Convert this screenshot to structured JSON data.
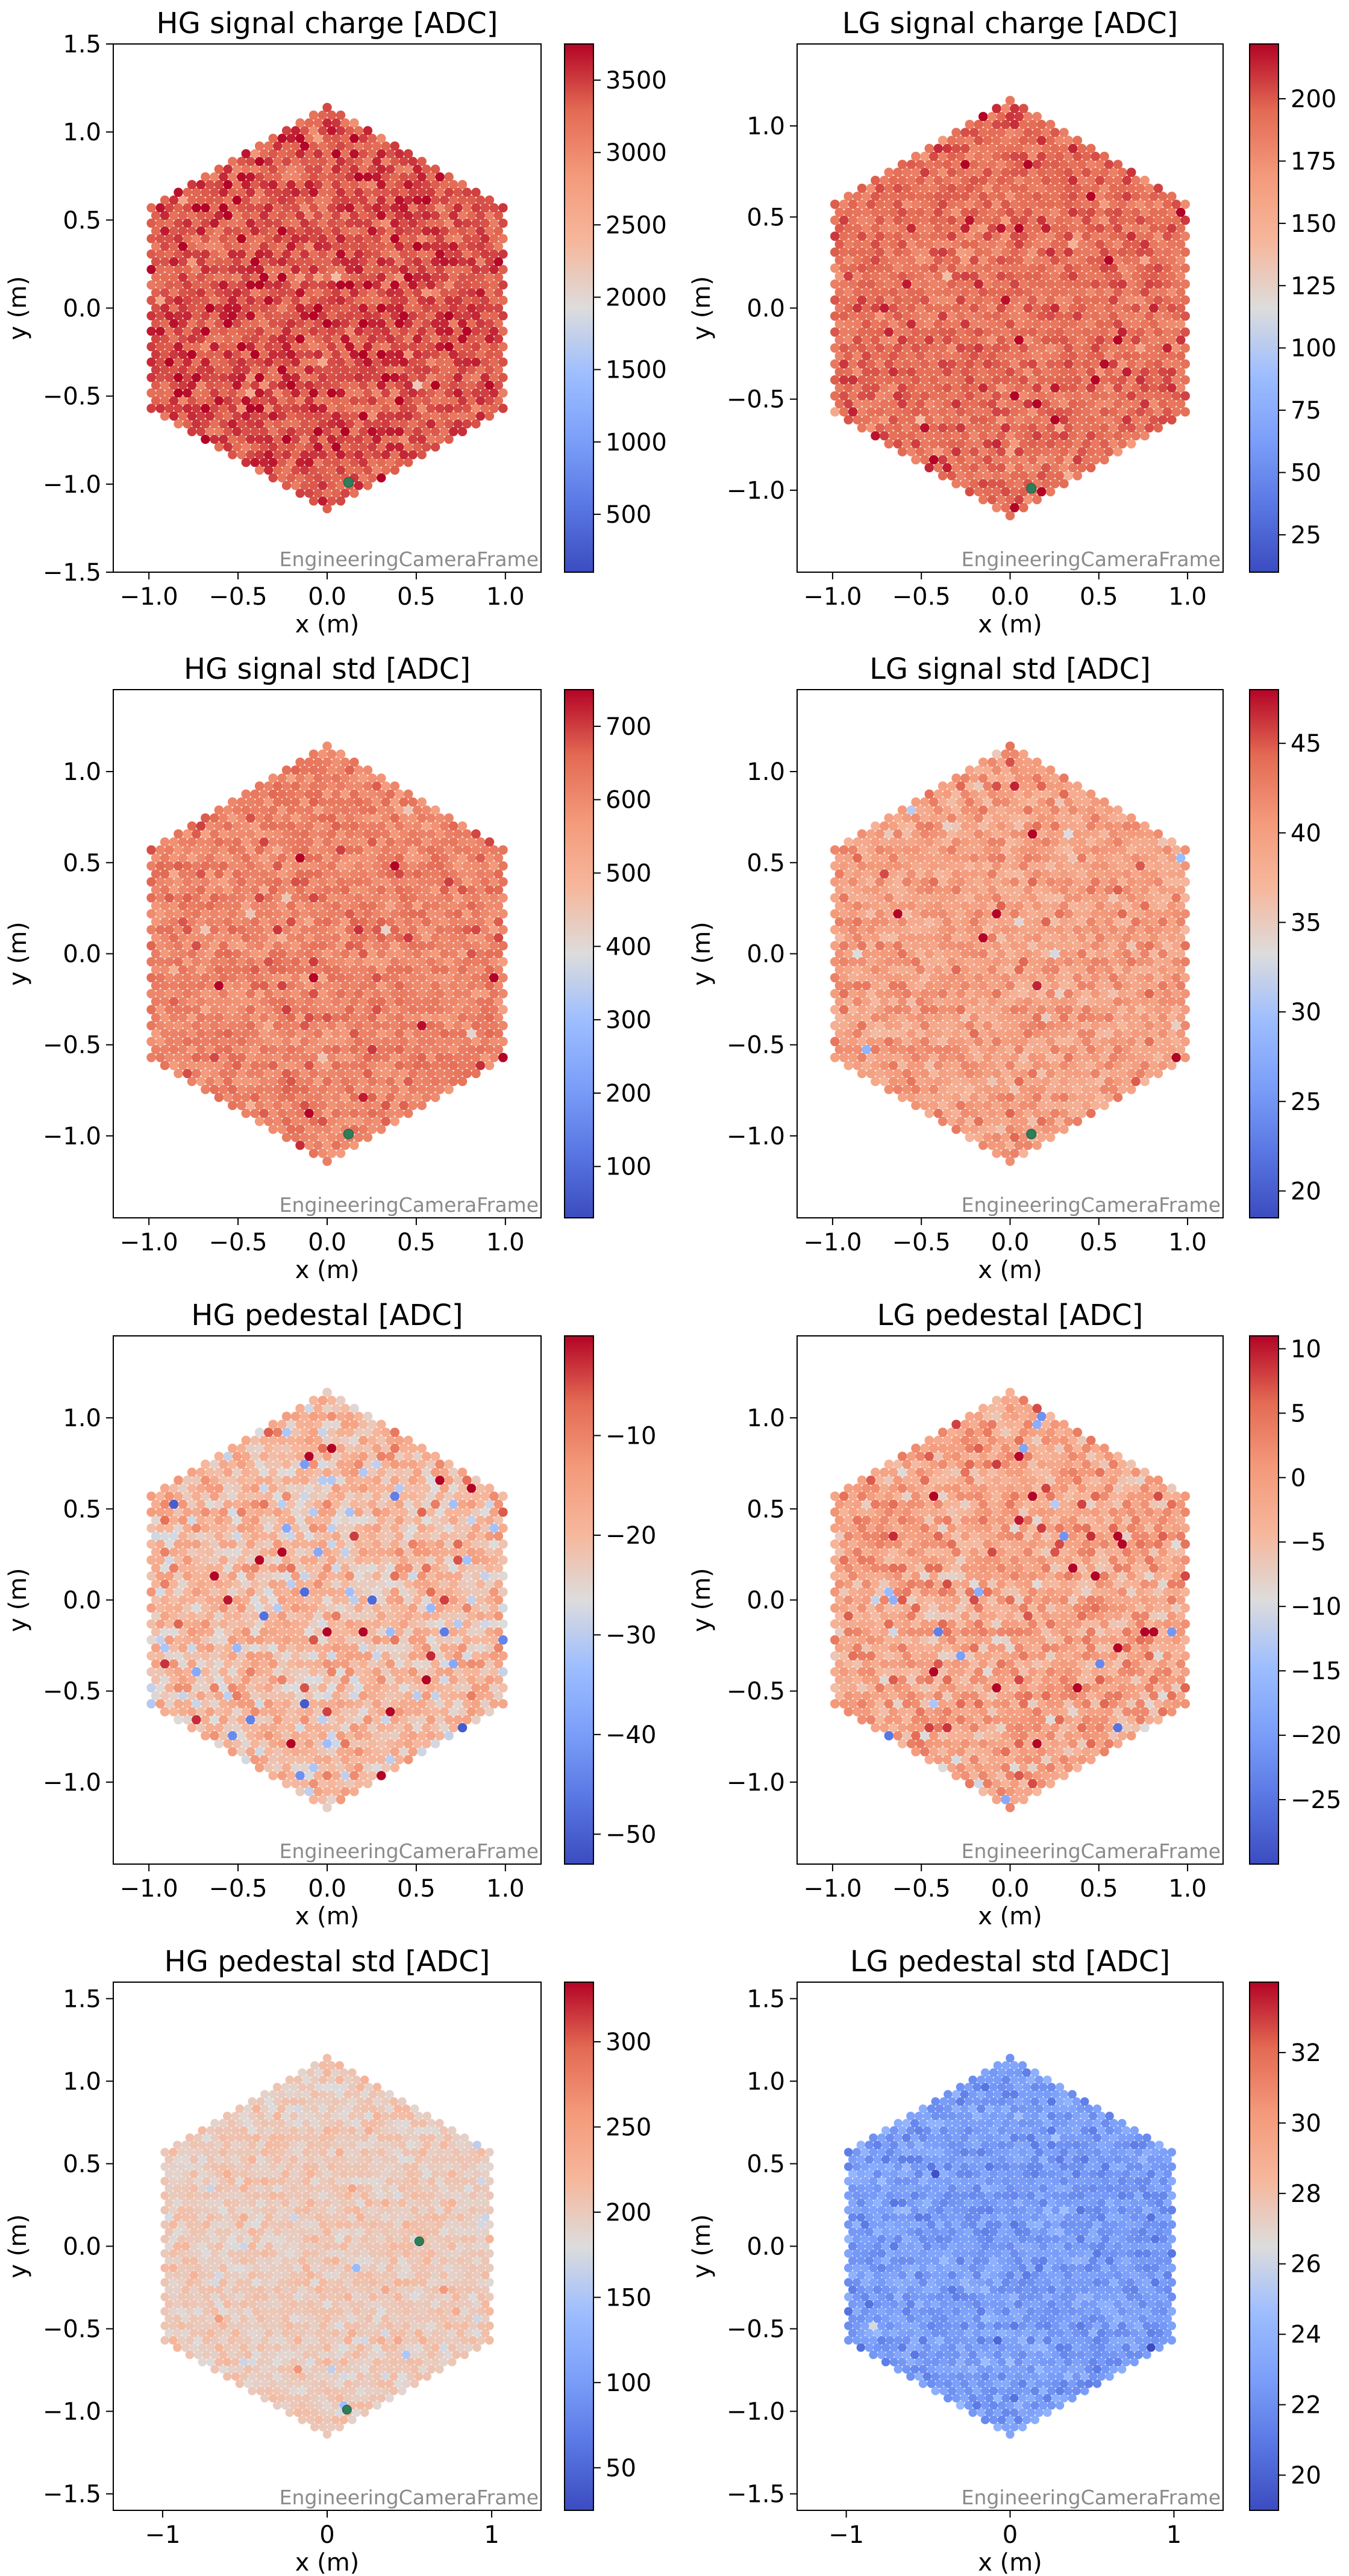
{
  "figure": {
    "frame_label": "EngineeringCameraFrame",
    "xlabel": "x  (m)",
    "ylabel": "y  (m)",
    "colormap": "coolwarm"
  },
  "chart_data": [
    {
      "type": "heatmap",
      "title": "HG signal charge [ADC]",
      "xlabel": "x  (m)",
      "ylabel": "y  (m)",
      "xlim": [
        -1.2,
        1.2
      ],
      "ylim": [
        -1.5,
        1.5
      ],
      "xticks": [
        "−1.0",
        "−0.5",
        "0.0",
        "0.5",
        "1.0"
      ],
      "xtick_values": [
        -1.0,
        -0.5,
        0.0,
        0.5,
        1.0
      ],
      "yticks": [
        "−1.5",
        "−1.0",
        "−0.5",
        "0.0",
        "0.5",
        "1.0",
        "1.5"
      ],
      "ytick_values": [
        -1.5,
        -1.0,
        -0.5,
        0.0,
        0.5,
        1.0,
        1.5
      ],
      "color_range": [
        100,
        3750
      ],
      "colorbar_ticks": [
        "500",
        "1000",
        "1500",
        "2000",
        "2500",
        "3000",
        "3500"
      ],
      "colorbar_tick_values": [
        500,
        1000,
        1500,
        2000,
        2500,
        3000,
        3500
      ],
      "typical_value": 3400,
      "spread": 180,
      "outlier_fraction": 0.01,
      "highlighted_pixels": [
        [
          0.12,
          -0.99
        ]
      ]
    },
    {
      "type": "heatmap",
      "title": "LG signal charge [ADC]",
      "xlabel": "x  (m)",
      "ylabel": "y  (m)",
      "xlim": [
        -1.2,
        1.2
      ],
      "ylim": [
        -1.45,
        1.45
      ],
      "xticks": [
        "−1.0",
        "−0.5",
        "0.0",
        "0.5",
        "1.0"
      ],
      "xtick_values": [
        -1.0,
        -0.5,
        0.0,
        0.5,
        1.0
      ],
      "yticks": [
        "−1.0",
        "−0.5",
        "0.0",
        "0.5",
        "1.0"
      ],
      "ytick_values": [
        -1.0,
        -0.5,
        0.0,
        0.5,
        1.0
      ],
      "color_range": [
        10,
        222
      ],
      "colorbar_ticks": [
        "25",
        "50",
        "75",
        "100",
        "125",
        "150",
        "175",
        "200"
      ],
      "colorbar_tick_values": [
        25,
        50,
        75,
        100,
        125,
        150,
        175,
        200
      ],
      "typical_value": 192,
      "spread": 9,
      "outlier_fraction": 0.01,
      "highlighted_pixels": [
        [
          0.12,
          -0.99
        ]
      ]
    },
    {
      "type": "heatmap",
      "title": "HG signal std [ADC]",
      "xlabel": "x  (m)",
      "ylabel": "y  (m)",
      "xlim": [
        -1.2,
        1.2
      ],
      "ylim": [
        -1.45,
        1.45
      ],
      "xticks": [
        "−1.0",
        "−0.5",
        "0.0",
        "0.5",
        "1.0"
      ],
      "xtick_values": [
        -1.0,
        -0.5,
        0.0,
        0.5,
        1.0
      ],
      "yticks": [
        "−1.0",
        "−0.5",
        "0.0",
        "0.5",
        "1.0"
      ],
      "ytick_values": [
        -1.0,
        -0.5,
        0.0,
        0.5,
        1.0
      ],
      "color_range": [
        30,
        750
      ],
      "colorbar_ticks": [
        "100",
        "200",
        "300",
        "400",
        "500",
        "600",
        "700"
      ],
      "colorbar_tick_values": [
        100,
        200,
        300,
        400,
        500,
        600,
        700
      ],
      "typical_value": 615,
      "spread": 30,
      "outlier_fraction": 0.01,
      "highlighted_pixels": [
        [
          0.12,
          -0.99
        ]
      ]
    },
    {
      "type": "heatmap",
      "title": "LG signal std [ADC]",
      "xlabel": "x  (m)",
      "ylabel": "y  (m)",
      "xlim": [
        -1.2,
        1.2
      ],
      "ylim": [
        -1.45,
        1.45
      ],
      "xticks": [
        "−1.0",
        "−0.5",
        "0.0",
        "0.5",
        "1.0"
      ],
      "xtick_values": [
        -1.0,
        -0.5,
        0.0,
        0.5,
        1.0
      ],
      "yticks": [
        "−1.0",
        "−0.5",
        "0.0",
        "0.5",
        "1.0"
      ],
      "ytick_values": [
        -1.0,
        -0.5,
        0.0,
        0.5,
        1.0
      ],
      "color_range": [
        18.5,
        48
      ],
      "colorbar_ticks": [
        "20",
        "25",
        "30",
        "35",
        "40",
        "45"
      ],
      "colorbar_tick_values": [
        20,
        25,
        30,
        35,
        40,
        45
      ],
      "typical_value": 40,
      "spread": 1.8,
      "outlier_fraction": 0.01,
      "highlighted_pixels": [
        [
          0.12,
          -0.99
        ]
      ]
    },
    {
      "type": "heatmap",
      "title": "HG pedestal [ADC]",
      "xlabel": "x  (m)",
      "ylabel": "y  (m)",
      "xlim": [
        -1.2,
        1.2
      ],
      "ylim": [
        -1.45,
        1.45
      ],
      "xticks": [
        "−1.0",
        "−0.5",
        "0.0",
        "0.5",
        "1.0"
      ],
      "xtick_values": [
        -1.0,
        -0.5,
        0.0,
        0.5,
        1.0
      ],
      "yticks": [
        "−1.0",
        "−0.5",
        "0.0",
        "0.5",
        "1.0"
      ],
      "ytick_values": [
        -1.0,
        -0.5,
        0.0,
        0.5,
        1.0
      ],
      "color_range": [
        -53,
        0
      ],
      "colorbar_ticks": [
        "−50",
        "−40",
        "−30",
        "−20",
        "−10"
      ],
      "colorbar_tick_values": [
        -50,
        -40,
        -30,
        -20,
        -10
      ],
      "typical_value": -20,
      "spread": 4.5,
      "outlier_fraction": 0.02,
      "highlighted_pixels": []
    },
    {
      "type": "heatmap",
      "title": "LG pedestal [ADC]",
      "xlabel": "x  (m)",
      "ylabel": "y  (m)",
      "xlim": [
        -1.2,
        1.2
      ],
      "ylim": [
        -1.45,
        1.45
      ],
      "xticks": [
        "−1.0",
        "−0.5",
        "0.0",
        "0.5",
        "1.0"
      ],
      "xtick_values": [
        -1.0,
        -0.5,
        0.0,
        0.5,
        1.0
      ],
      "yticks": [
        "−1.0",
        "−0.5",
        "0.0",
        "0.5",
        "1.0"
      ],
      "ytick_values": [
        -1.0,
        -0.5,
        0.0,
        0.5,
        1.0
      ],
      "color_range": [
        -30,
        11
      ],
      "colorbar_ticks": [
        "−25",
        "−20",
        "−15",
        "−10",
        "−5",
        "0",
        "5",
        "10"
      ],
      "colorbar_tick_values": [
        -25,
        -20,
        -15,
        -10,
        -5,
        0,
        5,
        10
      ],
      "typical_value": -1,
      "spread": 3.5,
      "outlier_fraction": 0.02,
      "highlighted_pixels": []
    },
    {
      "type": "heatmap",
      "title": "HG pedestal std [ADC]",
      "xlabel": "x  (m)",
      "ylabel": "y  (m)",
      "xlim": [
        -1.3,
        1.3
      ],
      "ylim": [
        -1.6,
        1.6
      ],
      "xticks": [
        "−1",
        "0",
        "1"
      ],
      "xtick_values": [
        -1,
        0,
        1
      ],
      "yticks": [
        "−1.5",
        "−1.0",
        "−0.5",
        "0.0",
        "0.5",
        "1.0",
        "1.5"
      ],
      "ytick_values": [
        -1.5,
        -1.0,
        -0.5,
        0.0,
        0.5,
        1.0,
        1.5
      ],
      "color_range": [
        25,
        335
      ],
      "colorbar_ticks": [
        "50",
        "100",
        "150",
        "200",
        "250",
        "300"
      ],
      "colorbar_tick_values": [
        50,
        100,
        150,
        200,
        250,
        300
      ],
      "typical_value": 200,
      "spread": 10,
      "outlier_fraction": 0.005,
      "highlighted_pixels": [
        [
          0.12,
          -0.99
        ],
        [
          0.56,
          0.03
        ]
      ]
    },
    {
      "type": "heatmap",
      "title": "LG pedestal std [ADC]",
      "xlabel": "x  (m)",
      "ylabel": "y  (m)",
      "xlim": [
        -1.3,
        1.3
      ],
      "ylim": [
        -1.6,
        1.6
      ],
      "xticks": [
        "−1",
        "0",
        "1"
      ],
      "xtick_values": [
        -1,
        0,
        1
      ],
      "yticks": [
        "−1.5",
        "−1.0",
        "−0.5",
        "0.0",
        "0.5",
        "1.0",
        "1.5"
      ],
      "ytick_values": [
        -1.5,
        -1.0,
        -0.5,
        0.0,
        0.5,
        1.0,
        1.5
      ],
      "color_range": [
        19,
        34
      ],
      "colorbar_ticks": [
        "20",
        "22",
        "24",
        "26",
        "28",
        "30",
        "32"
      ],
      "colorbar_tick_values": [
        20,
        22,
        24,
        26,
        28,
        30,
        32
      ],
      "typical_value": 22.6,
      "spread": 0.7,
      "outlier_fraction": 0.003,
      "highlighted_pixels": []
    }
  ]
}
